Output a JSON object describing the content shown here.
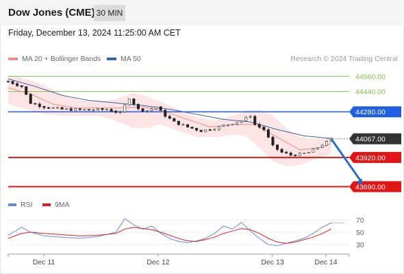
{
  "header": {
    "title": "Dow Jones (CME)",
    "timeframe": "30 MIN"
  },
  "timestamp": "Friday, December 13, 2024 11:25:00 AM CET",
  "legend": {
    "ma_bb": "MA 20 + Bollinger Bands",
    "ma50": "MA 50",
    "rsi": "RSI",
    "ma9": "9MA"
  },
  "copyright": "Research © 2024 Trading Central",
  "colors": {
    "up_candle": "#555555",
    "down_candle": "#222222",
    "ma20": "#f08a8a",
    "ma50": "#3a60a8",
    "bb_fill": "#fde2e2",
    "resistance_green": "#7cbf4a",
    "resistance_blue": "#1f5fe0",
    "support_red": "#e01515",
    "current": "#333333",
    "arrow": "#2c6cc0",
    "rsi": "#6688dd",
    "rsi_ma": "#e02020"
  },
  "chart_data": {
    "type": "candlestick",
    "x_tick_labels": [
      "Dec 11",
      "Dec 12",
      "Dec 13",
      "Dec 14"
    ],
    "y_tick_labels": [
      "44560.00",
      "44440.00",
      "44280.00",
      "44067.00",
      "43920.00",
      "43690.00"
    ],
    "ylim": [
      43660,
      44600
    ],
    "levels": [
      {
        "value": 44560,
        "label": "44560.00",
        "kind": "resistance-green"
      },
      {
        "value": 44440,
        "label": "44440.00",
        "kind": "resistance-green"
      },
      {
        "value": 44280,
        "label": "44280.00",
        "kind": "resistance-blue"
      },
      {
        "value": 44067,
        "label": "44067.00",
        "kind": "current"
      },
      {
        "value": 43920,
        "label": "43920.00",
        "kind": "support-red"
      },
      {
        "value": 43690,
        "label": "43690.00",
        "kind": "support-red"
      }
    ],
    "close_path": [
      [
        0,
        44520
      ],
      [
        3,
        44480
      ],
      [
        5,
        44350
      ],
      [
        8,
        44320
      ],
      [
        12,
        44300
      ],
      [
        18,
        44295
      ],
      [
        22,
        44300
      ],
      [
        25,
        44270
      ],
      [
        27,
        44390
      ],
      [
        29,
        44300
      ],
      [
        31,
        44290
      ],
      [
        33,
        44320
      ],
      [
        35,
        44250
      ],
      [
        37,
        44200
      ],
      [
        40,
        44160
      ],
      [
        43,
        44130
      ],
      [
        46,
        44150
      ],
      [
        50,
        44190
      ],
      [
        52,
        44210
      ],
      [
        54,
        44250
      ],
      [
        55,
        44180
      ],
      [
        57,
        44140
      ],
      [
        59,
        44010
      ],
      [
        61,
        43960
      ],
      [
        63,
        43940
      ],
      [
        65,
        43945
      ],
      [
        67,
        43960
      ],
      [
        69,
        44000
      ],
      [
        71,
        44040
      ],
      [
        72,
        44067
      ]
    ],
    "ma20_path": [
      [
        0,
        44470
      ],
      [
        5,
        44420
      ],
      [
        10,
        44340
      ],
      [
        15,
        44310
      ],
      [
        20,
        44310
      ],
      [
        25,
        44310
      ],
      [
        30,
        44320
      ],
      [
        35,
        44280
      ],
      [
        40,
        44220
      ],
      [
        45,
        44160
      ],
      [
        50,
        44180
      ],
      [
        55,
        44180
      ],
      [
        60,
        44080
      ],
      [
        65,
        43980
      ],
      [
        70,
        44000
      ],
      [
        72,
        44030
      ]
    ],
    "ma50_path": [
      [
        0,
        44540
      ],
      [
        6,
        44480
      ],
      [
        12,
        44410
      ],
      [
        18,
        44370
      ],
      [
        24,
        44350
      ],
      [
        30,
        44330
      ],
      [
        36,
        44300
      ],
      [
        42,
        44260
      ],
      [
        48,
        44220
      ],
      [
        54,
        44200
      ],
      [
        60,
        44140
      ],
      [
        66,
        44090
      ],
      [
        72,
        44070
      ]
    ],
    "bb_upper_path": [
      [
        0,
        44570
      ],
      [
        4,
        44540
      ],
      [
        8,
        44490
      ],
      [
        12,
        44420
      ],
      [
        16,
        44370
      ],
      [
        20,
        44360
      ],
      [
        24,
        44380
      ],
      [
        28,
        44430
      ],
      [
        31,
        44400
      ],
      [
        34,
        44360
      ],
      [
        38,
        44300
      ],
      [
        42,
        44240
      ],
      [
        46,
        44210
      ],
      [
        50,
        44250
      ],
      [
        53,
        44290
      ],
      [
        56,
        44300
      ],
      [
        59,
        44250
      ],
      [
        62,
        44150
      ],
      [
        65,
        44080
      ],
      [
        68,
        44070
      ],
      [
        72,
        44070
      ]
    ],
    "bb_lower_path": [
      [
        0,
        44340
      ],
      [
        4,
        44300
      ],
      [
        8,
        44260
      ],
      [
        12,
        44250
      ],
      [
        16,
        44250
      ],
      [
        20,
        44250
      ],
      [
        24,
        44210
      ],
      [
        28,
        44150
      ],
      [
        31,
        44150
      ],
      [
        34,
        44180
      ],
      [
        38,
        44130
      ],
      [
        42,
        44080
      ],
      [
        46,
        44080
      ],
      [
        50,
        44100
      ],
      [
        53,
        44090
      ],
      [
        56,
        44000
      ],
      [
        59,
        43890
      ],
      [
        62,
        43850
      ],
      [
        65,
        43860
      ],
      [
        68,
        43900
      ],
      [
        72,
        43950
      ]
    ],
    "projection": {
      "from": [
        72,
        44067
      ],
      "to": [
        79,
        43700
      ]
    },
    "rsi": {
      "ticks": [
        70,
        50,
        30
      ],
      "ylim": [
        20,
        80
      ],
      "rsi_path": [
        [
          0,
          45
        ],
        [
          3,
          58
        ],
        [
          5,
          50
        ],
        [
          8,
          44
        ],
        [
          12,
          42
        ],
        [
          16,
          40
        ],
        [
          20,
          43
        ],
        [
          24,
          50
        ],
        [
          26,
          72
        ],
        [
          28,
          62
        ],
        [
          30,
          55
        ],
        [
          32,
          60
        ],
        [
          34,
          48
        ],
        [
          36,
          40
        ],
        [
          38,
          35
        ],
        [
          40,
          33
        ],
        [
          42,
          36
        ],
        [
          44,
          40
        ],
        [
          46,
          48
        ],
        [
          48,
          60
        ],
        [
          50,
          55
        ],
        [
          52,
          66
        ],
        [
          54,
          52
        ],
        [
          56,
          40
        ],
        [
          58,
          30
        ],
        [
          60,
          28
        ],
        [
          62,
          32
        ],
        [
          64,
          36
        ],
        [
          66,
          40
        ],
        [
          68,
          48
        ],
        [
          70,
          58
        ],
        [
          72,
          65
        ],
        [
          75,
          65
        ]
      ],
      "ma9_path": [
        [
          0,
          40
        ],
        [
          3,
          48
        ],
        [
          5,
          50
        ],
        [
          8,
          48
        ],
        [
          12,
          46
        ],
        [
          16,
          44
        ],
        [
          20,
          45
        ],
        [
          24,
          48
        ],
        [
          26,
          55
        ],
        [
          28,
          58
        ],
        [
          30,
          56
        ],
        [
          32,
          54
        ],
        [
          34,
          50
        ],
        [
          36,
          45
        ],
        [
          38,
          40
        ],
        [
          40,
          36
        ],
        [
          42,
          35
        ],
        [
          44,
          38
        ],
        [
          46,
          42
        ],
        [
          48,
          48
        ],
        [
          50,
          52
        ],
        [
          52,
          56
        ],
        [
          54,
          54
        ],
        [
          56,
          48
        ],
        [
          58,
          40
        ],
        [
          60,
          34
        ],
        [
          62,
          32
        ],
        [
          64,
          34
        ],
        [
          66,
          38
        ],
        [
          68,
          42
        ],
        [
          70,
          48
        ],
        [
          72,
          55
        ]
      ]
    }
  }
}
